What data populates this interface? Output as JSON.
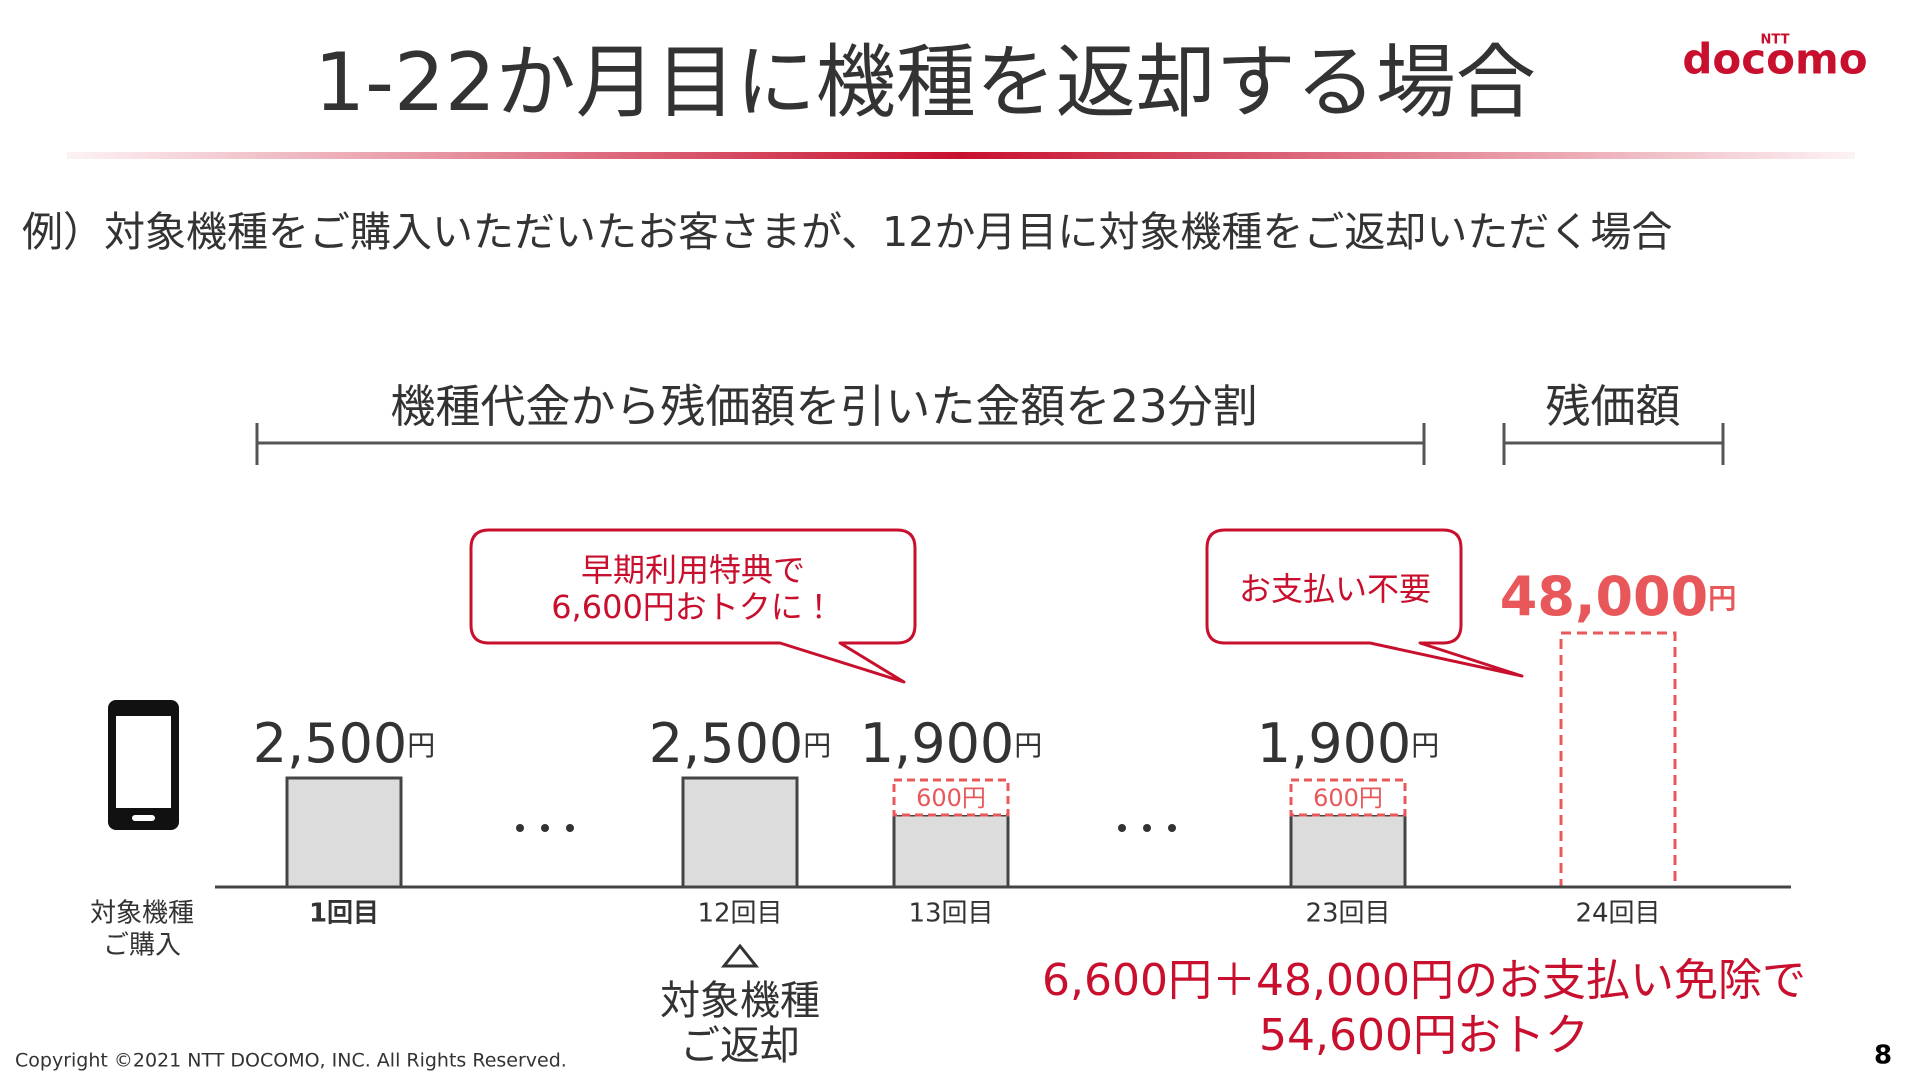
{
  "header": {
    "title": "1-22か月目に機種を返却する場合",
    "logo_small": "NTT",
    "logo": "docomo"
  },
  "subtitle": "例）対象機種をご購入いただいたお客さまが、12か月目に対象機種をご返却いただく場合",
  "brackets": [
    "機種代金から残価額を引いた金額を23分割",
    "残価額"
  ],
  "callouts": [
    {
      "lines": [
        "早期利用特典で",
        "6,600円おトクに！"
      ]
    },
    {
      "lines": [
        "お支払い不要"
      ]
    }
  ],
  "purchase_label": [
    "対象機種",
    "ご購入"
  ],
  "payments": [
    {
      "label": "1回目",
      "amount": "2,500",
      "unit": "円"
    },
    {
      "label": "12回目",
      "amount": "2,500",
      "unit": "円"
    },
    {
      "label": "13回目",
      "amount": "1,900",
      "unit": "円",
      "waived": "600円"
    },
    {
      "label": "23回目",
      "amount": "1,900",
      "unit": "円",
      "waived": "600円"
    },
    {
      "label": "24回目",
      "amount": "48,000",
      "unit": "円"
    }
  ],
  "return_label": [
    "対象機種",
    "ご返却"
  ],
  "conclusion": [
    "6,600円＋48,000円のお支払い免除で",
    "54,600円おトク"
  ],
  "footer": {
    "copyright": "Copyright ©2021 NTT DOCOMO, INC. All Rights Reserved.",
    "page": "8"
  }
}
